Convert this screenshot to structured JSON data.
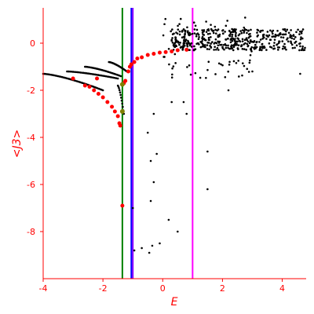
{
  "chart_data": {
    "type": "scatter",
    "title": "",
    "xlabel": "E",
    "ylabel": "<J3>",
    "xlim": [
      -4,
      4.8
    ],
    "ylim": [
      -10,
      1.5
    ],
    "x_ticks": [
      -4,
      -2,
      0,
      2,
      4
    ],
    "y_ticks": [
      0,
      -2,
      -4,
      -6,
      -8
    ],
    "grid": false,
    "legend": "none",
    "colors": {
      "axis": "#ff0000",
      "scatter_points": "#000000",
      "highlight_points": "#ff0000",
      "vline_green": "#008000",
      "vline_blue": "#0000ff",
      "vline_purple": "#8800ff",
      "vline_magenta": "#ff00ff"
    },
    "vertical_lines": [
      {
        "x": -1.35,
        "color": "#008000"
      },
      {
        "x": -1.05,
        "color": "#0000ff"
      },
      {
        "x": -1.0,
        "color": "#8800ff"
      },
      {
        "x": 1.0,
        "color": "#ff00ff"
      }
    ],
    "series": [
      {
        "type": "scatter",
        "color": "#000000",
        "marker_size": 1.3,
        "branches": [
          {
            "x": [
              -4.0,
              -2.0
            ],
            "y": [
              -1.3,
              -2.0
            ],
            "n": 45
          },
          {
            "x": [
              -3.2,
              -1.5
            ],
            "y": [
              -1.2,
              -1.5
            ],
            "n": 35
          },
          {
            "x": [
              -2.6,
              -1.4
            ],
            "y": [
              -1.0,
              -1.4
            ],
            "n": 30
          },
          {
            "x": [
              -1.8,
              -1.2
            ],
            "y": [
              -0.8,
              -1.2
            ],
            "n": 20
          },
          {
            "x": [
              -1.5,
              -1.3
            ],
            "y": [
              -1.8,
              -3.0
            ],
            "n": 12
          }
        ],
        "upper_band": {
          "x": [
            0.3,
            4.8
          ],
          "y": [
            -0.3,
            0.6
          ],
          "n": 420
        },
        "upper_spread": {
          "x": [
            0.0,
            3.0
          ],
          "y": [
            -1.5,
            1.2
          ],
          "n": 80
        },
        "sparse_points": [
          {
            "x": -0.5,
            "y": -3.8
          },
          {
            "x": -0.4,
            "y": -5.0
          },
          {
            "x": -0.3,
            "y": -5.9
          },
          {
            "x": -0.4,
            "y": -6.7
          },
          {
            "x": 0.2,
            "y": -7.5
          },
          {
            "x": -1.0,
            "y": -7.0
          },
          {
            "x": -0.95,
            "y": -8.8
          },
          {
            "x": -0.7,
            "y": -8.7
          },
          {
            "x": -0.45,
            "y": -8.9
          },
          {
            "x": -0.1,
            "y": -8.5
          },
          {
            "x": 0.5,
            "y": -8.0
          },
          {
            "x": 1.5,
            "y": -6.2
          },
          {
            "x": 1.5,
            "y": -4.6
          },
          {
            "x": 0.8,
            "y": -3.0
          },
          {
            "x": 0.3,
            "y": -2.5
          },
          {
            "x": -0.2,
            "y": -4.7
          },
          {
            "x": -0.3,
            "y": -3.0
          },
          {
            "x": 0.7,
            "y": -2.5
          },
          {
            "x": 2.2,
            "y": -2.0
          },
          {
            "x": 4.6,
            "y": -1.3
          },
          {
            "x": 3.0,
            "y": -1.2
          },
          {
            "x": -0.35,
            "y": -8.6
          }
        ]
      },
      {
        "type": "scatter",
        "color": "#ff0000",
        "marker_size": 2.5,
        "points": [
          {
            "x": -2.6,
            "y": -1.8
          },
          {
            "x": -2.45,
            "y": -1.85
          },
          {
            "x": -2.3,
            "y": -2.0
          },
          {
            "x": -2.15,
            "y": -2.15
          },
          {
            "x": -2.0,
            "y": -2.3
          },
          {
            "x": -1.85,
            "y": -2.5
          },
          {
            "x": -1.7,
            "y": -2.7
          },
          {
            "x": -1.6,
            "y": -2.9
          },
          {
            "x": -1.5,
            "y": -3.1
          },
          {
            "x": -1.45,
            "y": -3.4
          },
          {
            "x": -1.42,
            "y": -3.5
          },
          {
            "x": -1.35,
            "y": -1.75
          },
          {
            "x": -1.3,
            "y": -1.7
          },
          {
            "x": -1.25,
            "y": -1.6
          },
          {
            "x": -1.35,
            "y": -6.9
          },
          {
            "x": -1.15,
            "y": -1.2
          },
          {
            "x": -1.05,
            "y": -0.9
          },
          {
            "x": -0.95,
            "y": -0.8
          },
          {
            "x": -0.85,
            "y": -0.65
          },
          {
            "x": -0.7,
            "y": -0.6
          },
          {
            "x": -0.5,
            "y": -0.5
          },
          {
            "x": -0.3,
            "y": -0.45
          },
          {
            "x": -0.1,
            "y": -0.4
          },
          {
            "x": 0.1,
            "y": -0.38
          },
          {
            "x": 0.3,
            "y": -0.35
          },
          {
            "x": 0.5,
            "y": -0.3
          },
          {
            "x": 0.8,
            "y": -0.28
          },
          {
            "x": -1.1,
            "y": -1.0
          },
          {
            "x": -2.2,
            "y": -1.5
          },
          {
            "x": -3.0,
            "y": -1.5
          }
        ]
      },
      {
        "type": "scatter",
        "color": "#808000",
        "marker_size": 3,
        "points": [
          {
            "x": -1.35,
            "y": -1.75
          },
          {
            "x": -1.35,
            "y": -2.9
          }
        ]
      }
    ]
  }
}
